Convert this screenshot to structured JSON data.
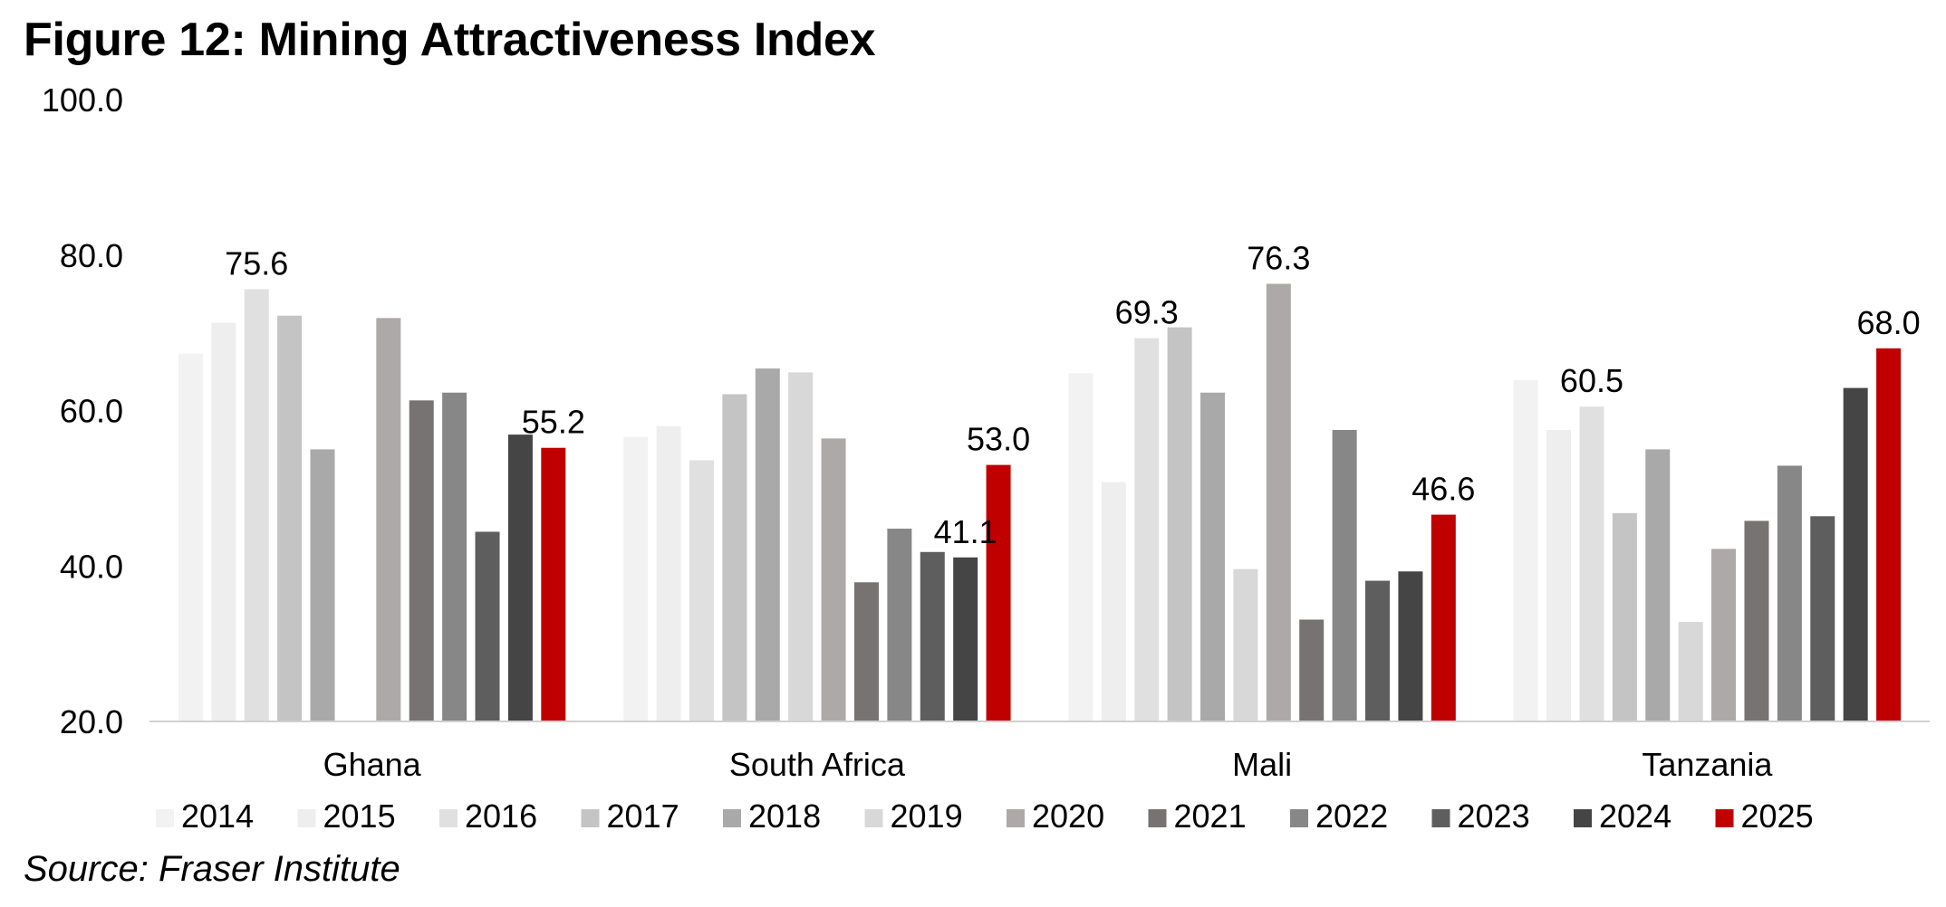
{
  "title": "Figure 12: Mining Attractiveness Index",
  "source": "Source: Fraser Institute",
  "chart_data": {
    "type": "bar",
    "categories": [
      "Ghana",
      "South Africa",
      "Mali",
      "Tanzania"
    ],
    "ylim": [
      20,
      100
    ],
    "yticks": [
      "20.0",
      "40.0",
      "60.0",
      "80.0",
      "100.0"
    ],
    "legend_position": "bottom",
    "series": [
      {
        "name": "2014",
        "color": "#f2f2f2",
        "values": [
          67.3,
          56.6,
          64.8,
          63.9
        ]
      },
      {
        "name": "2015",
        "color": "#eeeeee",
        "values": [
          71.3,
          58.0,
          50.8,
          57.5
        ]
      },
      {
        "name": "2016",
        "color": "#e0e0e0",
        "values": [
          75.6,
          53.6,
          69.3,
          60.5
        ]
      },
      {
        "name": "2017",
        "color": "#c4c4c4",
        "values": [
          72.2,
          62.1,
          70.7,
          46.8
        ]
      },
      {
        "name": "2018",
        "color": "#a9a9a9",
        "values": [
          55.0,
          65.4,
          62.3,
          55.0
        ]
      },
      {
        "name": "2019",
        "color": "#d8d8d8",
        "values": [
          null,
          64.9,
          39.6,
          32.8
        ]
      },
      {
        "name": "2020",
        "color": "#ada9a9",
        "values": [
          71.9,
          56.4,
          76.3,
          42.2
        ]
      },
      {
        "name": "2021",
        "color": "#777372",
        "values": [
          61.3,
          37.9,
          33.1,
          45.8
        ]
      },
      {
        "name": "2022",
        "color": "#878787",
        "values": [
          62.3,
          44.8,
          57.5,
          52.9
        ]
      },
      {
        "name": "2023",
        "color": "#5e5e5e",
        "values": [
          44.4,
          41.8,
          38.1,
          46.4
        ]
      },
      {
        "name": "2024",
        "color": "#454545",
        "values": [
          56.9,
          41.1,
          39.3,
          62.9
        ]
      },
      {
        "name": "2025",
        "color": "#c00000",
        "values": [
          55.2,
          53.0,
          46.6,
          68.0
        ]
      }
    ],
    "data_labels": [
      {
        "category": "Ghana",
        "series": "2016",
        "text": "75.6"
      },
      {
        "category": "Ghana",
        "series": "2025",
        "text": "55.2"
      },
      {
        "category": "South Africa",
        "series": "2024",
        "text": "41.1"
      },
      {
        "category": "South Africa",
        "series": "2025",
        "text": "53.0"
      },
      {
        "category": "Mali",
        "series": "2016",
        "text": "69.3"
      },
      {
        "category": "Mali",
        "series": "2020",
        "text": "76.3"
      },
      {
        "category": "Mali",
        "series": "2025",
        "text": "46.6"
      },
      {
        "category": "Tanzania",
        "series": "2016",
        "text": "60.5"
      },
      {
        "category": "Tanzania",
        "series": "2025",
        "text": "68.0"
      }
    ]
  }
}
